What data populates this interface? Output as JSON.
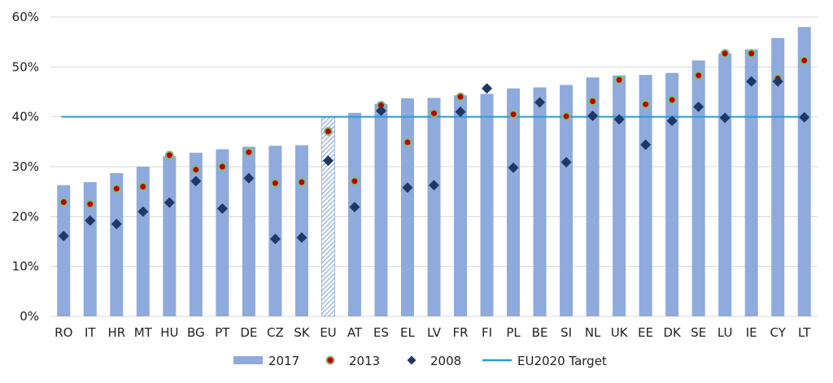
{
  "chart_data": {
    "type": "bar",
    "title": "",
    "xlabel": "",
    "ylabel": "",
    "ylim": [
      0,
      60
    ],
    "yticks": [
      0,
      10,
      20,
      30,
      40,
      50,
      60
    ],
    "ytick_labels": [
      "0%",
      "10%",
      "20%",
      "30%",
      "40%",
      "50%",
      "60%"
    ],
    "grid": true,
    "legend_position": "bottom",
    "categories": [
      "RO",
      "IT",
      "HR",
      "MT",
      "HU",
      "BG",
      "PT",
      "DE",
      "CZ",
      "SK",
      "EU",
      "AT",
      "ES",
      "EL",
      "LV",
      "FR",
      "FI",
      "PL",
      "BE",
      "SI",
      "NL",
      "UK",
      "EE",
      "DK",
      "SE",
      "LU",
      "IE",
      "CY",
      "LT"
    ],
    "highlight_category": "EU",
    "series": [
      {
        "name": "2017",
        "kind": "bar",
        "color": "#8faadc",
        "values": [
          26.3,
          26.9,
          28.7,
          30.0,
          32.1,
          32.8,
          33.5,
          34.0,
          34.2,
          34.3,
          39.9,
          40.8,
          42.6,
          43.7,
          43.8,
          44.3,
          44.6,
          45.7,
          45.9,
          46.4,
          47.9,
          48.3,
          48.4,
          48.8,
          51.3,
          52.7,
          53.5,
          55.8,
          58.0
        ]
      },
      {
        "name": "2013",
        "kind": "marker-circle",
        "color": "#c00000",
        "edge_color": "#7fbf7f",
        "values": [
          22.9,
          22.5,
          25.6,
          26.0,
          32.3,
          29.4,
          30.0,
          32.9,
          26.7,
          26.9,
          37.1,
          27.1,
          42.3,
          34.9,
          40.7,
          44.0,
          null,
          40.5,
          null,
          40.1,
          43.1,
          47.4,
          42.5,
          43.4,
          48.3,
          52.7,
          52.7,
          47.7,
          51.3
        ]
      },
      {
        "name": "2008",
        "kind": "marker-diamond",
        "color": "#1f3864",
        "values": [
          16.1,
          19.2,
          18.5,
          21.0,
          22.8,
          27.1,
          21.6,
          27.7,
          15.5,
          15.8,
          31.2,
          21.9,
          41.2,
          25.8,
          26.3,
          41.0,
          45.7,
          29.8,
          42.9,
          30.9,
          40.2,
          39.5,
          34.4,
          39.2,
          42.0,
          39.8,
          47.1,
          47.1,
          39.9
        ]
      }
    ],
    "reference_line": {
      "name": "EU2020 Target",
      "value": 40,
      "color": "#2e9bd0"
    },
    "legend": [
      "2017",
      "2013",
      "2008",
      "EU2020 Target"
    ]
  }
}
